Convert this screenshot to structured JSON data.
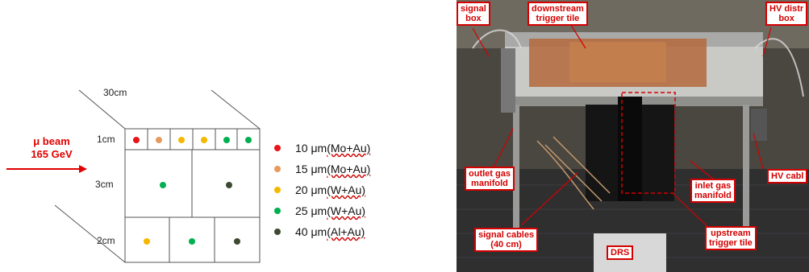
{
  "diagram": {
    "beam_label": "μ beam",
    "beam_energy": "165 GeV",
    "dim_top": "30cm",
    "dim_row1": "1cm",
    "dim_row2": "3cm",
    "dim_row3": "2cm",
    "legend": [
      {
        "text": "10 μm ",
        "paren": "(Mo+Au)",
        "color": "#e8141a"
      },
      {
        "text": "15 μm ",
        "paren": "(Mo+Au)",
        "color": "#e79a5c"
      },
      {
        "text": "20 μm ",
        "paren": "(W+Au)",
        "color": "#f5b800"
      },
      {
        "text": "25 μm ",
        "paren": "(W+Au)",
        "color": "#00b050"
      },
      {
        "text": "40 μm ",
        "paren": "(Al+Au)",
        "color": "#3d4a33"
      }
    ]
  },
  "photo": {
    "labels": {
      "signal_box": "signal\nbox",
      "downstream": "downstream\ntrigger tile",
      "hv_distr": "HV distr\nbox",
      "outlet": "outlet gas\nmanifold",
      "inlet": "inlet gas\nmanifold",
      "hv_cable": "HV cabl",
      "signal_cables": "signal cables\n(40 cm)",
      "upstream": "upstream\ntrigger tile",
      "drs": "DRS"
    }
  }
}
